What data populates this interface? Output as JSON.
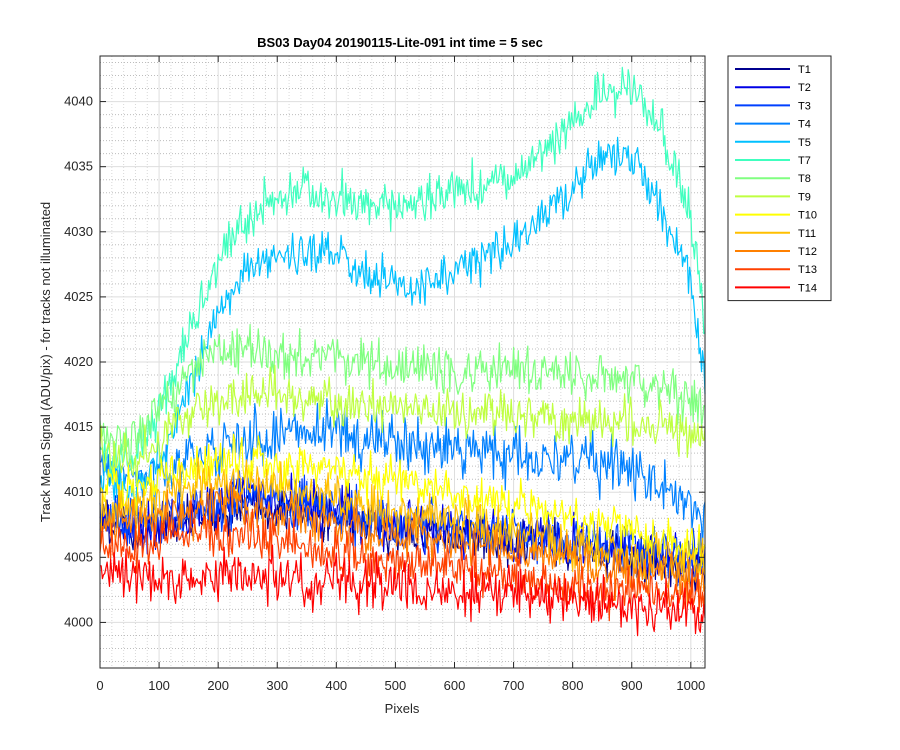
{
  "chart_data": {
    "type": "line",
    "title": "BS03 Day04 20190115-Lite-091 int time = 5 sec",
    "xlabel": "Pixels",
    "ylabel": "Track Mean Signal (ADU/pix) - for tracks not illuminated",
    "xlim": [
      0,
      1024
    ],
    "ylim": [
      3996.5,
      4043.5
    ],
    "xticks": [
      0,
      100,
      200,
      300,
      400,
      500,
      600,
      700,
      800,
      900,
      1000
    ],
    "yticks": [
      4000,
      4005,
      4010,
      4015,
      4020,
      4025,
      4030,
      4035,
      4040
    ],
    "grid": "on (major and minor)",
    "legend_position": "outside-right",
    "x": [
      0,
      50,
      100,
      150,
      200,
      250,
      300,
      350,
      400,
      450,
      500,
      550,
      600,
      650,
      700,
      750,
      800,
      850,
      900,
      950,
      1000,
      1024
    ],
    "series": [
      {
        "name": "T1",
        "color": "#00008f",
        "noise": 1.4,
        "values": [
          4008,
          4007,
          4007,
          4008,
          4008.5,
          4009,
          4009,
          4008.5,
          4008,
          4007.5,
          4007,
          4007,
          4006.5,
          4006.5,
          4006,
          4006,
          4005.5,
          4005.5,
          4005,
          4004.5,
          4004,
          4004
        ]
      },
      {
        "name": "T2",
        "color": "#0000e6",
        "noise": 1.5,
        "values": [
          4008,
          4007.5,
          4007.5,
          4008,
          4009,
          4009.5,
          4009.5,
          4009,
          4008.5,
          4008,
          4007.5,
          4007.5,
          4007,
          4007,
          4006.5,
          4006.5,
          4006,
          4006,
          4005.5,
          4005,
          4004.5,
          4004.5
        ]
      },
      {
        "name": "T3",
        "color": "#0040ff",
        "noise": 1.5,
        "values": [
          4008,
          4007.5,
          4008,
          4008.5,
          4009,
          4009.5,
          4009.5,
          4009,
          4008.5,
          4008,
          4007.5,
          4007.5,
          4007,
          4007,
          4007,
          4006.5,
          4006.5,
          4006,
          4006,
          4005.5,
          4005,
          4005
        ]
      },
      {
        "name": "T4",
        "color": "#0080ff",
        "noise": 1.6,
        "values": [
          4012,
          4011,
          4011.5,
          4012.5,
          4013.5,
          4014,
          4014.5,
          4014.5,
          4014.5,
          4014,
          4014,
          4013.5,
          4013.5,
          4013,
          4013,
          4012.5,
          4012.5,
          4012,
          4011.5,
          4011,
          4009,
          4008
        ]
      },
      {
        "name": "T5",
        "color": "#00c0ff",
        "noise": 1.3,
        "values": [
          4011,
          4010,
          4012,
          4018,
          4024,
          4027,
          4028,
          4028.5,
          4028,
          4026.5,
          4026,
          4026,
          4027,
          4028,
          4029,
          4031,
          4033.5,
          4035.5,
          4035.5,
          4032,
          4026,
          4019
        ]
      },
      {
        "name": "T7",
        "color": "#40ffbf",
        "noise": 1.4,
        "values": [
          4013,
          4012,
          4016,
          4022,
          4028,
          4031,
          4032.5,
          4033,
          4032.5,
          4032,
          4032,
          4032.5,
          4033,
          4033.5,
          4034,
          4036,
          4038.5,
          4040.5,
          4041,
          4038,
          4031,
          4023
        ]
      },
      {
        "name": "T8",
        "color": "#80ff80",
        "noise": 1.4,
        "values": [
          4014,
          4013.5,
          4016,
          4019,
          4020.5,
          4021,
          4020.5,
          4020.5,
          4020,
          4020,
          4019.5,
          4019.5,
          4019.5,
          4019.5,
          4019.5,
          4019,
          4019,
          4019,
          4018.5,
          4018,
          4017,
          4016.5
        ]
      },
      {
        "name": "T9",
        "color": "#bfff40",
        "noise": 1.4,
        "values": [
          4013,
          4012.5,
          4014,
          4016,
          4017,
          4017.5,
          4017.5,
          4017,
          4017,
          4016.5,
          4016.5,
          4016,
          4016,
          4016,
          4016,
          4016,
          4015.5,
          4015.5,
          4015.5,
          4015,
          4014.5,
          4014
        ]
      },
      {
        "name": "T10",
        "color": "#ffff00",
        "noise": 1.4,
        "values": [
          4010,
          4010,
          4011,
          4012,
          4012.5,
          4012.5,
          4012,
          4012,
          4011.5,
          4011,
          4011,
          4010.5,
          4010,
          4009.5,
          4009,
          4008.5,
          4008,
          4007.5,
          4007,
          4006.5,
          4006,
          4006
        ]
      },
      {
        "name": "T11",
        "color": "#ffbf00",
        "noise": 1.4,
        "values": [
          4008.5,
          4008.5,
          4009.5,
          4010.5,
          4011,
          4011,
          4010.5,
          4010,
          4009.5,
          4009,
          4008.5,
          4008,
          4008,
          4007.5,
          4007,
          4006.5,
          4006,
          4005.5,
          4005,
          4005,
          4004.5,
          4004.5
        ]
      },
      {
        "name": "T12",
        "color": "#ff8000",
        "noise": 1.4,
        "values": [
          4007.5,
          4007.5,
          4008,
          4008.5,
          4009,
          4009,
          4008.5,
          4008,
          4007.5,
          4007,
          4006.5,
          4006.5,
          4006,
          4006,
          4005.5,
          4005,
          4004.5,
          4004,
          4003.5,
          4003.5,
          4003,
          4003
        ]
      },
      {
        "name": "T13",
        "color": "#ff4000",
        "noise": 1.4,
        "values": [
          4006,
          4006,
          4006.5,
          4007,
          4007,
          4007,
          4006.5,
          4006,
          4005.5,
          4005,
          4005,
          4004.5,
          4004.5,
          4004,
          4003.5,
          4003.5,
          4003,
          4002.5,
          4002.5,
          4002,
          4002,
          4002
        ]
      },
      {
        "name": "T14",
        "color": "#ff0000",
        "noise": 1.5,
        "values": [
          4004,
          4003.5,
          4003.5,
          4003.5,
          4003.5,
          4003.5,
          4003.5,
          4003,
          4003,
          4003,
          4003,
          4002.5,
          4002.5,
          4002.5,
          4002,
          4002,
          4001.5,
          4001.5,
          4001,
          4001,
          4000.5,
          4000.5
        ]
      }
    ]
  }
}
